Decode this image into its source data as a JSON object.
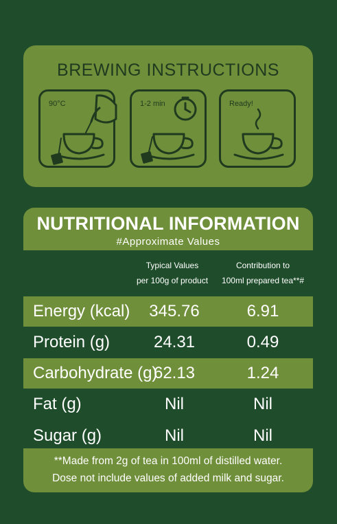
{
  "brewing": {
    "title": "BREWING INSTRUCTIONS",
    "steps": [
      {
        "label": "90°C",
        "icon": "kettle-pouring-cup-icon"
      },
      {
        "label": "1-2 min",
        "icon": "timer-cup-icon"
      },
      {
        "label": "Ready!",
        "icon": "steaming-cup-icon"
      }
    ]
  },
  "nutrition": {
    "title": "NUTRITIONAL INFORMATION",
    "subtitle": "#Approximate Values",
    "columns": {
      "typical_line1": "Typical Values",
      "typical_line2": "per 100g of product",
      "contrib_line1": "Contribution to",
      "contrib_line2": "100ml prepared tea**#"
    },
    "rows": [
      {
        "label": "Energy (kcal)",
        "per100g": "345.76",
        "per100ml": "6.91"
      },
      {
        "label": "Protein (g)",
        "per100g": "24.31",
        "per100ml": "0.49"
      },
      {
        "label": "Carbohydrate (g)",
        "per100g": "62.13",
        "per100ml": "1.24"
      },
      {
        "label": "Fat (g)",
        "per100g": "Nil",
        "per100ml": "Nil"
      },
      {
        "label": "Sugar (g)",
        "per100g": "Nil",
        "per100ml": "Nil"
      }
    ],
    "footnote_line1": "**Made from 2g of tea in 100ml of distilled water.",
    "footnote_line2": "Dose not include values of added milk and sugar."
  },
  "colors": {
    "background": "#1f4d2b",
    "panel": "#6f8f3a",
    "ink": "#1f3a1e"
  }
}
